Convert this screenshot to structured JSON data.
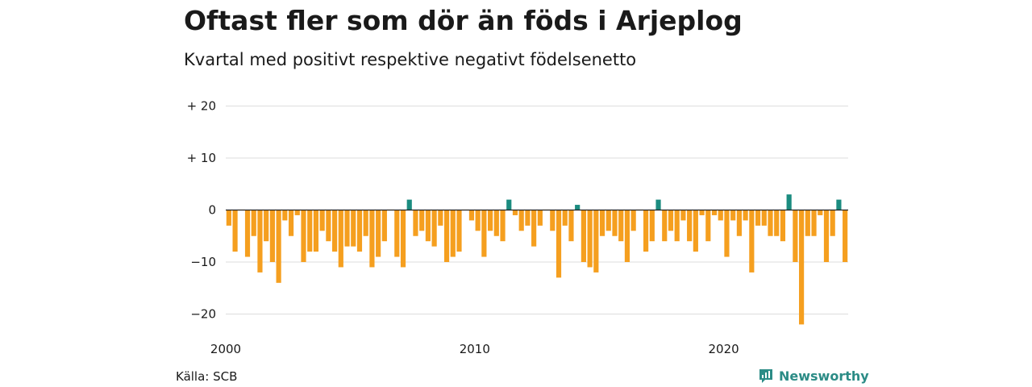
{
  "title": "Oftast fler som dör än föds i Arjeplog",
  "subtitle": "Kvartal med positivt respektive negativt födelsenetto",
  "source": "Källa: SCB",
  "brand": "Newsworthy",
  "colors": {
    "positive": "#1b8c80",
    "negative": "#f59f1f",
    "grid": "#dddddd",
    "zero": "#222222"
  },
  "chart_data": {
    "type": "bar",
    "x_start": "2000 Q1",
    "y_ticks": [
      20,
      10,
      0,
      -10,
      -20
    ],
    "y_tick_labels": [
      "+ 20",
      "+ 10",
      "0",
      "−10",
      "−20"
    ],
    "ylim": [
      -23,
      21
    ],
    "x_tick_labels": [
      {
        "label": "2000",
        "year": 2000
      },
      {
        "label": "2010",
        "year": 2010
      },
      {
        "label": "2020",
        "year": 2020
      }
    ],
    "grid": true,
    "values": [
      -3,
      -8,
      0,
      -9,
      -5,
      -12,
      -6,
      -10,
      -14,
      -2,
      -5,
      -1,
      -10,
      -8,
      -8,
      -4,
      -6,
      -8,
      -11,
      -7,
      -7,
      -8,
      -5,
      -11,
      -9,
      -6,
      0,
      -9,
      -11,
      2,
      -5,
      -4,
      -6,
      -7,
      -3,
      -10,
      -9,
      -8,
      0,
      -2,
      -4,
      -9,
      -4,
      -5,
      -6,
      2,
      -1,
      -4,
      -3,
      -7,
      -3,
      0,
      -4,
      -13,
      -3,
      -6,
      1,
      -10,
      -11,
      -12,
      -5,
      -4,
      -5,
      -6,
      -10,
      -4,
      0,
      -8,
      -6,
      2,
      -6,
      -4,
      -6,
      -2,
      -6,
      -8,
      -1,
      -6,
      -1,
      -2,
      -9,
      -2,
      -5,
      -2,
      -12,
      -3,
      -3,
      -5,
      -5,
      -6,
      3,
      -10,
      -22,
      -5,
      -5,
      -1,
      -10,
      -5,
      2,
      -10
    ]
  }
}
